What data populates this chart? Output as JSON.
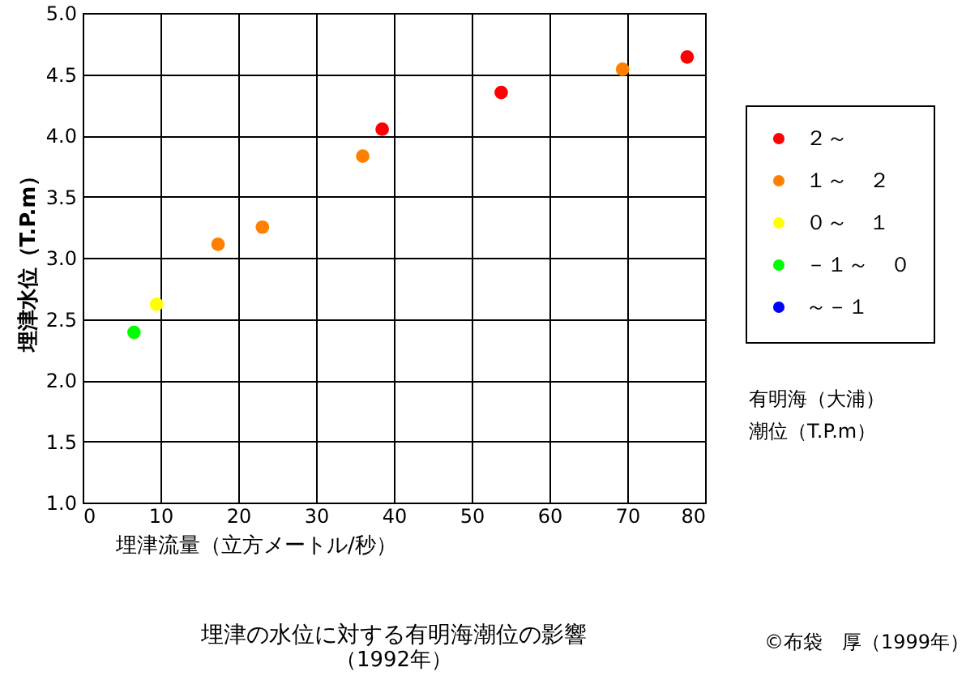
{
  "chart_data": {
    "type": "scatter",
    "title": "埋津の水位に対する有明海潮位の影響",
    "subtitle": "（1992年）",
    "xlabel": "埋津流量（立方メートル/秒）",
    "ylabel": "埋津水位（T.P.m）",
    "legend_title": "有明海（大浦）潮位（T.P.m）",
    "annotations": [
      "©布袋　厚（1999年）"
    ],
    "series": [
      {
        "name": "２～",
        "color": "#ff0000",
        "x": [
          38.5,
          53.8,
          77.7
        ],
        "values": [
          4.05,
          4.35,
          4.64
        ]
      },
      {
        "name": "１～　２",
        "color": "#ff8000",
        "x": [
          17.4,
          23.1,
          36.0,
          69.4
        ],
        "values": [
          3.11,
          3.25,
          3.83,
          4.54
        ]
      },
      {
        "name": "０～　１",
        "color": "#ffff00",
        "x": [
          9.5
        ],
        "values": [
          2.62
        ]
      },
      {
        "name": "－１～　０",
        "color": "#00ff00",
        "x": [
          6.6
        ],
        "values": [
          2.39
        ]
      },
      {
        "name": "～－１",
        "color": "#0000ff"
      }
    ],
    "xlim": [
      0,
      80
    ],
    "xticks": [
      0,
      10,
      20,
      30,
      40,
      50,
      60,
      70,
      80
    ],
    "ylim": [
      1,
      5
    ],
    "yticks": [
      {
        "value": 1,
        "label": "1.0"
      },
      {
        "value": 1.5,
        "label": "1.5"
      },
      {
        "value": 2,
        "label": "2.0"
      },
      {
        "value": 2.5,
        "label": "2.5"
      },
      {
        "value": 3,
        "label": "3.0"
      },
      {
        "value": 3.5,
        "label": "3.5"
      },
      {
        "value": 4,
        "label": "4.0"
      },
      {
        "value": 4.5,
        "label": "4.5"
      },
      {
        "value": 5,
        "label": "5.0"
      }
    ],
    "grid": true,
    "legend": "right",
    "marker": "circle"
  }
}
